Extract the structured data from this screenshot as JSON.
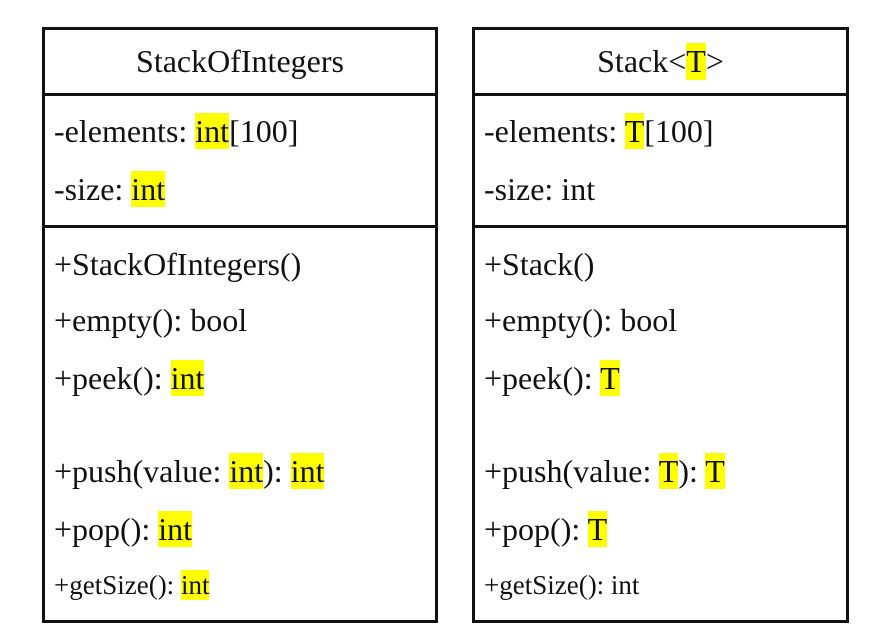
{
  "highlight_color": "#ffff00",
  "border_color": "#111111",
  "classes": [
    {
      "name": [
        {
          "text": "StackOfIntegers",
          "hl": false
        }
      ],
      "attributes": [
        [
          {
            "text": "-elements: ",
            "hl": false
          },
          {
            "text": "int",
            "hl": true
          },
          {
            "text": "[100]",
            "hl": false
          }
        ],
        [
          {
            "text": "-size: ",
            "hl": false
          },
          {
            "text": "int",
            "hl": true
          }
        ]
      ],
      "operations": [
        [
          {
            "text": "+StackOfIntegers()",
            "hl": false
          }
        ],
        [
          {
            "text": "+empty(): bool",
            "hl": false
          }
        ],
        [
          {
            "text": "+peek(): ",
            "hl": false
          },
          {
            "text": "int",
            "hl": true
          }
        ],
        [
          {
            "text": "+push(value: ",
            "hl": false
          },
          {
            "text": "int",
            "hl": true
          },
          {
            "text": "): ",
            "hl": false
          },
          {
            "text": "int",
            "hl": true
          }
        ],
        [
          {
            "text": "+pop(): ",
            "hl": false
          },
          {
            "text": "int",
            "hl": true
          }
        ],
        [
          {
            "text": "+getSize(): ",
            "hl": false
          },
          {
            "text": "int",
            "hl": true
          }
        ]
      ]
    },
    {
      "name": [
        {
          "text": "Stack<",
          "hl": false
        },
        {
          "text": "T",
          "hl": true
        },
        {
          "text": ">",
          "hl": false
        }
      ],
      "attributes": [
        [
          {
            "text": "-elements: ",
            "hl": false
          },
          {
            "text": "T",
            "hl": true
          },
          {
            "text": "[100]",
            "hl": false
          }
        ],
        [
          {
            "text": "-size: int",
            "hl": false
          }
        ]
      ],
      "operations": [
        [
          {
            "text": "+Stack()",
            "hl": false
          }
        ],
        [
          {
            "text": "+empty(): bool",
            "hl": false
          }
        ],
        [
          {
            "text": "+peek(): ",
            "hl": false
          },
          {
            "text": "T",
            "hl": true
          }
        ],
        [
          {
            "text": "+push(value: ",
            "hl": false
          },
          {
            "text": "T",
            "hl": true
          },
          {
            "text": "): ",
            "hl": false
          },
          {
            "text": "T",
            "hl": true
          }
        ],
        [
          {
            "text": "+pop(): ",
            "hl": false
          },
          {
            "text": "T",
            "hl": true
          }
        ],
        [
          {
            "text": "+getSize(): int",
            "hl": false
          }
        ]
      ]
    }
  ]
}
